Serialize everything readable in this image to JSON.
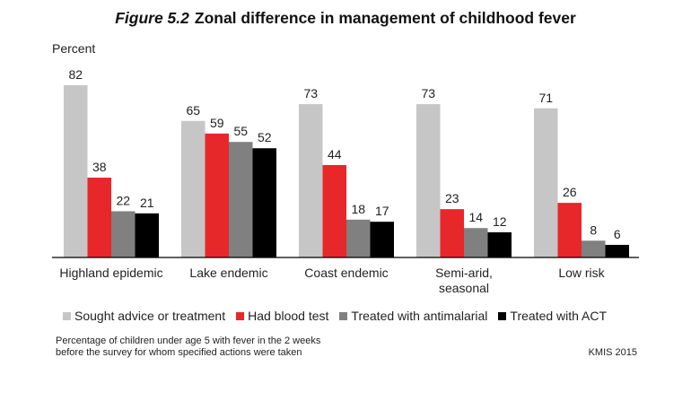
{
  "figure": {
    "number": "Figure 5.2",
    "title": "Zonal difference in management of childhood fever",
    "note_line1": "Percentage of children under age 5 with fever in the 2 weeks",
    "note_line2": "before the survey for whom specified actions were taken",
    "source": "KMIS 2015"
  },
  "chart_data": {
    "type": "bar",
    "ylabel": "Percent",
    "ylim": [
      0,
      82
    ],
    "grid": false,
    "legend_position": "bottom",
    "categories": [
      [
        "Highland epidemic"
      ],
      [
        "Lake endemic"
      ],
      [
        "Coast endemic"
      ],
      [
        "Semi-arid,",
        "seasonal"
      ],
      [
        "Low risk"
      ]
    ],
    "series": [
      {
        "name": "Sought advice or treatment",
        "color": "#c6c6c6",
        "values": [
          82,
          65,
          73,
          73,
          71
        ]
      },
      {
        "name": "Had blood test",
        "color": "#e8272b",
        "values": [
          38,
          59,
          44,
          23,
          26
        ]
      },
      {
        "name": "Treated with antimalarial",
        "color": "#808080",
        "values": [
          22,
          55,
          18,
          14,
          8
        ]
      },
      {
        "name": "Treated with ACT",
        "color": "#000000",
        "values": [
          21,
          52,
          17,
          12,
          6
        ]
      }
    ]
  }
}
